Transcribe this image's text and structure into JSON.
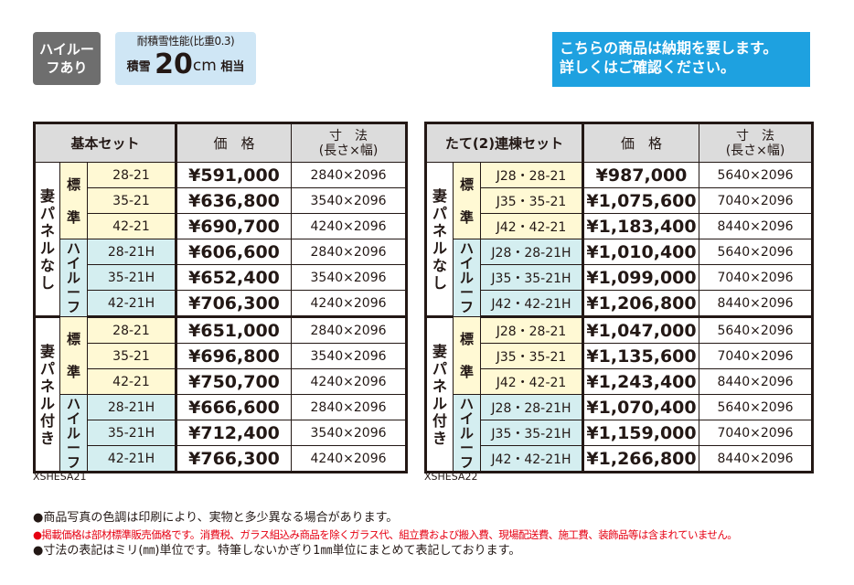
{
  "badges": {
    "high_roof": "ハイルーフあり",
    "snow_top": "耐積雪性能(比重0.3)",
    "snow_prefix": "積雪",
    "snow_value": "20",
    "snow_unit": "cm",
    "snow_suffix": "相当"
  },
  "notice": {
    "line1": "こちらの商品は納期を要します。",
    "line2": "詳しくはご確認ください。"
  },
  "colors": {
    "standard_bg": "#fff9d4",
    "highroof_bg": "#d4eef0",
    "header_bg": "#dcdcdc",
    "notice_bg": "#1ea1e0",
    "warning_red": "#e60012"
  },
  "tables": [
    {
      "title": "基本セット",
      "price_header": "価　格",
      "size_header1": "寸　法",
      "size_header2": "(長さ×幅)",
      "code": "XSHESA21",
      "groups": [
        {
          "label": "妻パネルなし",
          "subs": [
            {
              "label": "標準",
              "type": "std",
              "rows": [
                [
                  "28-21",
                  "¥591,000",
                  "2840×2096"
                ],
                [
                  "35-21",
                  "¥636,800",
                  "3540×2096"
                ],
                [
                  "42-21",
                  "¥690,700",
                  "4240×2096"
                ]
              ]
            },
            {
              "label": "ハイルーフ",
              "type": "hi",
              "rows": [
                [
                  "28-21H",
                  "¥606,600",
                  "2840×2096"
                ],
                [
                  "35-21H",
                  "¥652,400",
                  "3540×2096"
                ],
                [
                  "42-21H",
                  "¥706,300",
                  "4240×2096"
                ]
              ]
            }
          ]
        },
        {
          "label": "妻パネル付き",
          "subs": [
            {
              "label": "標準",
              "type": "std",
              "rows": [
                [
                  "28-21",
                  "¥651,000",
                  "2840×2096"
                ],
                [
                  "35-21",
                  "¥696,800",
                  "3540×2096"
                ],
                [
                  "42-21",
                  "¥750,700",
                  "4240×2096"
                ]
              ]
            },
            {
              "label": "ハイルーフ",
              "type": "hi",
              "rows": [
                [
                  "28-21H",
                  "¥666,600",
                  "2840×2096"
                ],
                [
                  "35-21H",
                  "¥712,400",
                  "3540×2096"
                ],
                [
                  "42-21H",
                  "¥766,300",
                  "4240×2096"
                ]
              ]
            }
          ]
        }
      ]
    },
    {
      "title": "たて(2)連棟セット",
      "price_header": "価　格",
      "size_header1": "寸　法",
      "size_header2": "(長さ×幅)",
      "code": "XSHESA22",
      "groups": [
        {
          "label": "妻パネルなし",
          "subs": [
            {
              "label": "標準",
              "type": "std",
              "rows": [
                [
                  "J28・28-21",
                  "¥987,000",
                  "5640×2096"
                ],
                [
                  "J35・35-21",
                  "¥1,075,600",
                  "7040×2096"
                ],
                [
                  "J42・42-21",
                  "¥1,183,400",
                  "8440×2096"
                ]
              ]
            },
            {
              "label": "ハイルーフ",
              "type": "hi",
              "rows": [
                [
                  "J28・28-21H",
                  "¥1,010,400",
                  "5640×2096"
                ],
                [
                  "J35・35-21H",
                  "¥1,099,000",
                  "7040×2096"
                ],
                [
                  "J42・42-21H",
                  "¥1,206,800",
                  "8440×2096"
                ]
              ]
            }
          ]
        },
        {
          "label": "妻パネル付き",
          "subs": [
            {
              "label": "標準",
              "type": "std",
              "rows": [
                [
                  "J28・28-21",
                  "¥1,047,000",
                  "5640×2096"
                ],
                [
                  "J35・35-21",
                  "¥1,135,600",
                  "7040×2096"
                ],
                [
                  "J42・42-21",
                  "¥1,243,400",
                  "8440×2096"
                ]
              ]
            },
            {
              "label": "ハイルーフ",
              "type": "hi",
              "rows": [
                [
                  "J28・28-21H",
                  "¥1,070,400",
                  "5640×2096"
                ],
                [
                  "J35・35-21H",
                  "¥1,159,000",
                  "7040×2096"
                ],
                [
                  "J42・42-21H",
                  "¥1,266,800",
                  "8440×2096"
                ]
              ]
            }
          ]
        }
      ]
    }
  ],
  "notes": [
    "●商品写真の色調は印刷により、実物と多少異なる場合があります。",
    "●掲載価格は部材標準販売価格です。消費税、ガラス組込み商品を除くガラス代、組立費および搬入費、現場配送費、施工費、装飾品等は含まれていません。",
    "●寸法の表記はミリ(㎜)単位です。特筆しないかぎり1㎜単位にまとめて表記しております。"
  ]
}
